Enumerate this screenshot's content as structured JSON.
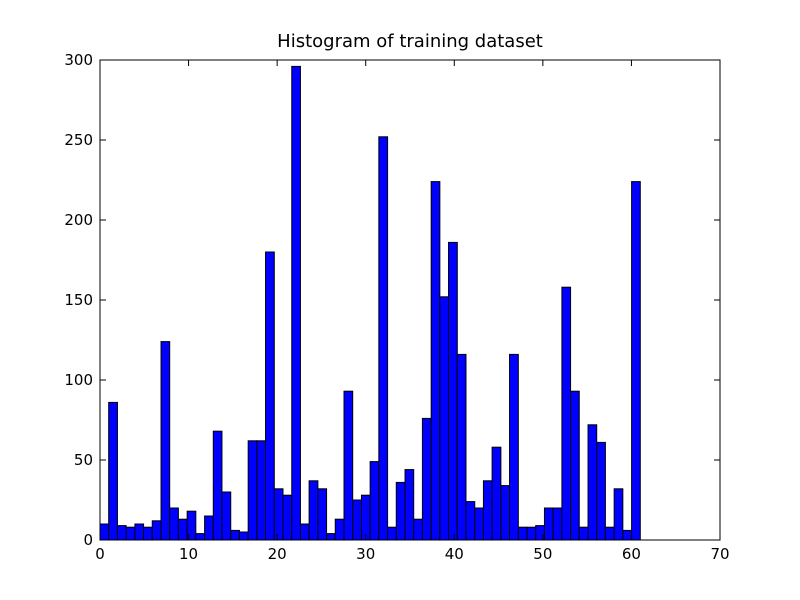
{
  "chart_data": {
    "type": "histogram",
    "title": "Histogram of training dataset",
    "bins": [
      0,
      0.98,
      1.97,
      2.95,
      3.94,
      4.92,
      5.9,
      6.89,
      7.87,
      8.85,
      9.84,
      10.82,
      11.81,
      12.79,
      13.77,
      14.76,
      15.74,
      16.73,
      17.71,
      18.69,
      19.68,
      20.66,
      21.65,
      22.63,
      23.61,
      24.6,
      25.58,
      26.56,
      27.55,
      28.53,
      29.52,
      30.5,
      31.48,
      32.47,
      33.45,
      34.44,
      35.42,
      36.4,
      37.39,
      38.37,
      39.35,
      40.34,
      41.32,
      42.31,
      43.29,
      44.27,
      45.26,
      46.24,
      47.23,
      48.21,
      49.19,
      50.18,
      51.16,
      52.15,
      53.13,
      54.11,
      55.1,
      56.08,
      57.06,
      58.05,
      59.03,
      60.02,
      61
    ],
    "values": [
      10,
      86,
      9,
      8,
      10,
      8,
      12,
      124,
      20,
      13,
      18,
      4,
      15,
      68,
      30,
      6,
      5,
      62,
      62,
      180,
      32,
      28,
      296,
      10,
      37,
      32,
      4,
      13,
      93,
      25,
      28,
      49,
      252,
      8,
      36,
      44,
      13,
      76,
      224,
      152,
      186,
      116,
      24,
      20,
      37,
      58,
      34,
      116,
      8,
      8,
      9,
      20,
      20,
      158,
      93,
      8,
      72,
      61,
      8,
      32,
      6,
      224
    ],
    "color": "#0000ff",
    "edgecolor": "#000000",
    "xlim": [
      0,
      70
    ],
    "xticks": [
      0,
      10,
      20,
      30,
      40,
      50,
      60,
      70
    ],
    "ylim": [
      0,
      300
    ],
    "yticks": [
      0,
      50,
      100,
      150,
      200,
      250,
      300
    ],
    "grid": false
  }
}
